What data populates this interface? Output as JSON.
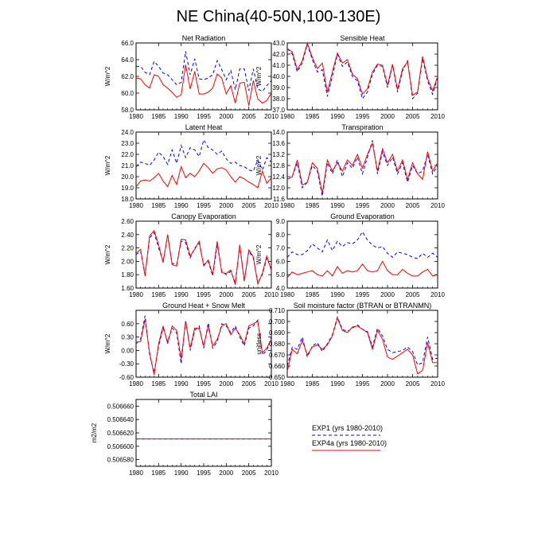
{
  "title": "NE China(40-50N,100-130E)",
  "colors": {
    "exp1": "#0000ff",
    "exp4a": "#ff0000"
  },
  "legend": {
    "exp1": "EXP1 (yrs 1980-2010)",
    "exp4a": "EXP4a (yrs 1980-2010)"
  },
  "chart_data": [
    {
      "type": "line",
      "title": "Net Radiation",
      "ylabel": "W/m^2",
      "xlim": [
        1980,
        2010
      ],
      "ylim": [
        58.0,
        66.0
      ],
      "xticks": [
        1980,
        1985,
        1990,
        1995,
        2000,
        2005,
        2010
      ],
      "yticks": [
        "58.0",
        "60.0",
        "62.0",
        "64.0",
        "66.0"
      ],
      "x": [
        1980,
        1981,
        1982,
        1983,
        1984,
        1985,
        1986,
        1987,
        1988,
        1989,
        1990,
        1991,
        1992,
        1993,
        1994,
        1995,
        1996,
        1997,
        1998,
        1999,
        2000,
        2001,
        2002,
        2003,
        2004,
        2005,
        2006,
        2007,
        2008,
        2009,
        2010
      ],
      "series": [
        {
          "name": "EXP1 (yrs 1980-2010)",
          "style": "dashed",
          "values": [
            63.2,
            63.2,
            62.5,
            62.2,
            63.8,
            63.2,
            62.4,
            62.2,
            61.6,
            61.0,
            61.3,
            65.0,
            62.2,
            64.1,
            61.7,
            61.6,
            61.8,
            62.2,
            63.9,
            62.8,
            61.6,
            62.7,
            60.4,
            62.9,
            62.9,
            60.3,
            62.9,
            60.5,
            60.2,
            60.9,
            61.5
          ]
        },
        {
          "name": "EXP4a (yrs 1980-2010)",
          "style": "solid",
          "values": [
            61.8,
            61.7,
            61.0,
            60.6,
            62.2,
            62.0,
            61.0,
            60.6,
            60.1,
            59.5,
            59.8,
            63.4,
            60.5,
            62.6,
            59.9,
            59.9,
            60.1,
            60.6,
            62.3,
            61.8,
            59.9,
            60.9,
            58.8,
            61.2,
            61.3,
            58.5,
            61.5,
            59.3,
            58.8,
            59.1,
            60.0
          ]
        }
      ]
    },
    {
      "type": "line",
      "title": "Sensible Heat",
      "ylabel": "W/m^2",
      "xlim": [
        1980,
        2010
      ],
      "ylim": [
        37.0,
        43.0
      ],
      "xticks": [
        1980,
        1985,
        1990,
        1995,
        2000,
        2005,
        2010
      ],
      "yticks": [
        "37.0",
        "38.0",
        "39.0",
        "40.0",
        "41.0",
        "42.0",
        "43.0"
      ],
      "x": [
        1980,
        1981,
        1982,
        1983,
        1984,
        1985,
        1986,
        1987,
        1988,
        1989,
        1990,
        1991,
        1992,
        1993,
        1994,
        1995,
        1996,
        1997,
        1998,
        1999,
        2000,
        2001,
        2002,
        2003,
        2004,
        2005,
        2006,
        2007,
        2008,
        2009,
        2010
      ],
      "series": [
        {
          "name": "EXP1 (yrs 1980-2010)",
          "style": "dashed",
          "values": [
            42.5,
            42.0,
            40.4,
            41.2,
            42.9,
            41.5,
            40.4,
            40.6,
            38.2,
            40.0,
            42.0,
            40.9,
            41.3,
            40.0,
            39.6,
            38.0,
            38.6,
            40.2,
            41.0,
            40.9,
            39.0,
            41.0,
            38.6,
            40.5,
            41.4,
            38.0,
            38.5,
            41.6,
            39.6,
            38.4,
            39.9
          ]
        },
        {
          "name": "EXP4a (yrs 1980-2010)",
          "style": "solid",
          "values": [
            42.5,
            42.2,
            40.6,
            41.4,
            43.0,
            41.7,
            40.7,
            41.2,
            38.6,
            40.4,
            42.1,
            41.2,
            41.5,
            40.2,
            39.8,
            38.4,
            38.9,
            40.4,
            41.1,
            41.0,
            39.2,
            41.1,
            38.8,
            40.7,
            41.3,
            38.3,
            38.6,
            41.8,
            39.8,
            38.7,
            40.0
          ]
        }
      ]
    },
    {
      "type": "line",
      "title": "Latent Heat",
      "ylabel": "W/m^2",
      "xlim": [
        1980,
        2010
      ],
      "ylim": [
        18.0,
        24.0
      ],
      "xticks": [
        1980,
        1985,
        1990,
        1995,
        2000,
        2005,
        2010
      ],
      "yticks": [
        "18.0",
        "19.0",
        "20.0",
        "21.0",
        "22.0",
        "23.0",
        "24.0"
      ],
      "x": [
        1980,
        1981,
        1982,
        1983,
        1984,
        1985,
        1986,
        1987,
        1988,
        1989,
        1990,
        1991,
        1992,
        1993,
        1994,
        1995,
        1996,
        1997,
        1998,
        1999,
        2000,
        2001,
        2002,
        2003,
        2004,
        2005,
        2006,
        2007,
        2008,
        2009,
        2010
      ],
      "series": [
        {
          "name": "EXP1 (yrs 1980-2010)",
          "style": "dashed",
          "values": [
            20.9,
            21.3,
            21.2,
            21.0,
            21.5,
            22.2,
            21.8,
            21.1,
            22.4,
            21.2,
            22.8,
            21.7,
            22.6,
            22.4,
            21.8,
            23.3,
            22.6,
            22.4,
            22.0,
            22.3,
            21.6,
            21.2,
            21.3,
            21.0,
            20.9,
            20.6,
            20.5,
            21.5,
            20.6,
            21.7,
            21.3
          ]
        },
        {
          "name": "EXP4a (yrs 1980-2010)",
          "style": "solid",
          "values": [
            19.1,
            19.6,
            19.7,
            19.6,
            19.9,
            20.3,
            19.6,
            19.1,
            20.1,
            19.3,
            20.9,
            19.9,
            20.3,
            20.0,
            20.5,
            21.2,
            20.8,
            20.3,
            20.7,
            20.8,
            20.6,
            20.0,
            19.5,
            20.0,
            19.8,
            19.5,
            19.3,
            19.0,
            20.5,
            19.4,
            19.9
          ]
        }
      ]
    },
    {
      "type": "line",
      "title": "Transpiration",
      "ylabel": "W/m^2",
      "xlim": [
        1980,
        2010
      ],
      "ylim": [
        11.6,
        14.0
      ],
      "xticks": [
        1980,
        1985,
        1990,
        1995,
        2000,
        2005,
        2010
      ],
      "yticks": [
        "11.6",
        "12.0",
        "12.4",
        "12.8",
        "13.2",
        "13.6",
        "14.0"
      ],
      "x": [
        1980,
        1981,
        1982,
        1983,
        1984,
        1985,
        1986,
        1987,
        1988,
        1989,
        1990,
        1991,
        1992,
        1993,
        1994,
        1995,
        1996,
        1997,
        1998,
        1999,
        2000,
        2001,
        2002,
        2003,
        2004,
        2005,
        2006,
        2007,
        2008,
        2009,
        2010
      ],
      "series": [
        {
          "name": "EXP1 (yrs 1980-2010)",
          "style": "dashed",
          "values": [
            12.3,
            12.4,
            12.9,
            12.0,
            12.2,
            12.8,
            12.6,
            11.7,
            12.9,
            12.5,
            13.0,
            12.4,
            12.9,
            12.7,
            13.1,
            12.5,
            13.1,
            13.7,
            12.5,
            13.3,
            12.8,
            13.1,
            12.5,
            12.9,
            12.2,
            12.8,
            12.5,
            12.6,
            13.2,
            12.5,
            12.8
          ]
        },
        {
          "name": "EXP4a (yrs 1980-2010)",
          "style": "solid",
          "values": [
            12.3,
            12.4,
            13.0,
            12.1,
            12.2,
            12.9,
            12.7,
            11.8,
            13.0,
            12.6,
            12.9,
            12.6,
            13.0,
            12.8,
            13.2,
            12.7,
            13.2,
            13.6,
            12.6,
            13.4,
            12.9,
            13.2,
            12.6,
            13.0,
            12.3,
            12.9,
            12.5,
            12.3,
            13.3,
            12.6,
            12.9
          ]
        }
      ]
    },
    {
      "type": "line",
      "title": "Canopy Evaporation",
      "ylabel": "W/m^2",
      "xlim": [
        1980,
        2010
      ],
      "ylim": [
        1.6,
        2.6
      ],
      "xticks": [
        1980,
        1985,
        1990,
        1995,
        2000,
        2005,
        2010
      ],
      "yticks": [
        "1.60",
        "1.80",
        "2.00",
        "2.20",
        "2.40",
        "2.60"
      ],
      "x": [
        1980,
        1981,
        1982,
        1983,
        1984,
        1985,
        1986,
        1987,
        1988,
        1989,
        1990,
        1991,
        1992,
        1993,
        1994,
        1995,
        1996,
        1997,
        1998,
        1999,
        2000,
        2001,
        2002,
        2003,
        2004,
        2005,
        2006,
        2007,
        2008,
        2009,
        2010
      ],
      "series": [
        {
          "name": "EXP1 (yrs 1980-2010)",
          "style": "dashed",
          "values": [
            2.1,
            2.15,
            1.8,
            2.35,
            2.43,
            2.2,
            2.0,
            2.38,
            1.97,
            1.95,
            2.3,
            2.28,
            2.05,
            2.2,
            2.27,
            1.95,
            2.0,
            1.78,
            2.25,
            1.85,
            1.8,
            1.85,
            1.68,
            2.23,
            1.72,
            2.15,
            2.05,
            1.68,
            1.8,
            2.05,
            1.88
          ]
        },
        {
          "name": "EXP4a (yrs 1980-2010)",
          "style": "solid",
          "values": [
            2.12,
            2.18,
            1.78,
            2.38,
            2.46,
            2.25,
            1.98,
            2.4,
            1.95,
            1.93,
            2.33,
            2.32,
            2.08,
            2.18,
            2.3,
            1.93,
            2.02,
            1.8,
            2.3,
            1.83,
            1.82,
            1.87,
            1.65,
            2.25,
            1.7,
            2.17,
            2.07,
            1.66,
            1.82,
            2.08,
            1.86
          ]
        }
      ]
    },
    {
      "type": "line",
      "title": "Ground Evaporation",
      "ylabel": "W/m^2",
      "xlim": [
        1980,
        2010
      ],
      "ylim": [
        4.0,
        9.0
      ],
      "xticks": [
        1980,
        1985,
        1990,
        1995,
        2000,
        2005,
        2010
      ],
      "yticks": [
        "4.0",
        "5.0",
        "6.0",
        "7.0",
        "8.0",
        "9.0"
      ],
      "x": [
        1980,
        1981,
        1982,
        1983,
        1984,
        1985,
        1986,
        1987,
        1988,
        1989,
        1990,
        1991,
        1992,
        1993,
        1994,
        1995,
        1996,
        1997,
        1998,
        1999,
        2000,
        2001,
        2002,
        2003,
        2004,
        2005,
        2006,
        2007,
        2008,
        2009,
        2010
      ],
      "series": [
        {
          "name": "EXP1 (yrs 1980-2010)",
          "style": "dashed",
          "values": [
            6.3,
            6.7,
            6.5,
            6.5,
            6.8,
            7.3,
            7.0,
            6.7,
            7.6,
            6.8,
            7.5,
            7.1,
            7.4,
            7.3,
            7.6,
            8.2,
            7.6,
            7.2,
            7.0,
            7.1,
            6.6,
            6.3,
            6.7,
            6.6,
            6.5,
            6.3,
            6.2,
            6.6,
            6.3,
            6.6,
            6.3
          ]
        },
        {
          "name": "EXP4a (yrs 1980-2010)",
          "style": "solid",
          "values": [
            4.8,
            5.2,
            5.0,
            5.1,
            5.2,
            5.3,
            5.0,
            4.9,
            5.3,
            4.9,
            5.6,
            5.1,
            5.3,
            5.2,
            5.3,
            5.8,
            5.3,
            5.2,
            5.3,
            6.0,
            5.3,
            5.0,
            5.0,
            5.4,
            5.1,
            4.9,
            4.9,
            5.2,
            5.4,
            4.9,
            5.0
          ]
        }
      ]
    },
    {
      "type": "line",
      "title": "Ground Heat + Snow Melt",
      "ylabel": "W/m^2",
      "xlim": [
        1980,
        2010
      ],
      "ylim": [
        -0.6,
        0.9
      ],
      "xticks": [
        1980,
        1985,
        1990,
        1995,
        2000,
        2005,
        2010
      ],
      "yticks": [
        "-0.60",
        "-0.30",
        "0.00",
        "0.30",
        "0.60"
      ],
      "x": [
        1980,
        1981,
        1982,
        1983,
        1984,
        1985,
        1986,
        1987,
        1988,
        1989,
        1990,
        1991,
        1992,
        1993,
        1994,
        1995,
        1996,
        1997,
        1998,
        1999,
        2000,
        2001,
        2002,
        2003,
        2004,
        2005,
        2006,
        2007,
        2008,
        2009,
        2010
      ],
      "series": [
        {
          "name": "EXP1 (yrs 1980-2010)",
          "style": "dashed",
          "values": [
            0.15,
            0.25,
            0.78,
            -0.1,
            -0.5,
            0.1,
            0.5,
            0.2,
            0.5,
            0.4,
            -0.3,
            0.68,
            0.0,
            0.45,
            0.55,
            0.05,
            0.62,
            0.05,
            0.2,
            0.6,
            0.55,
            0.4,
            0.55,
            0.3,
            0.1,
            0.5,
            0.55,
            0.68,
            -0.1,
            0.0,
            0.3
          ]
        },
        {
          "name": "EXP4a (yrs 1980-2010)",
          "style": "solid",
          "values": [
            0.18,
            0.2,
            0.7,
            -0.05,
            -0.55,
            0.15,
            0.55,
            0.15,
            0.55,
            0.45,
            -0.2,
            0.65,
            0.05,
            0.5,
            0.5,
            0.1,
            0.55,
            0.1,
            0.25,
            0.55,
            0.6,
            0.35,
            0.5,
            0.35,
            0.15,
            0.55,
            0.6,
            0.65,
            -0.05,
            0.05,
            0.25
          ]
        }
      ]
    },
    {
      "type": "line",
      "title": "Soil moisture factor (BTRAN or BTRANMN)",
      "ylabel": "unitless",
      "xlim": [
        1980,
        2010
      ],
      "ylim": [
        0.65,
        0.71
      ],
      "xticks": [
        1980,
        1985,
        1990,
        1995,
        2000,
        2005,
        2010
      ],
      "yticks": [
        "0.650",
        "0.660",
        "0.670",
        "0.680",
        "0.690",
        "0.700",
        "0.710"
      ],
      "x": [
        1980,
        1981,
        1982,
        1983,
        1984,
        1985,
        1986,
        1987,
        1988,
        1989,
        1990,
        1991,
        1992,
        1993,
        1994,
        1995,
        1996,
        1997,
        1998,
        1999,
        2000,
        2001,
        2002,
        2003,
        2004,
        2005,
        2006,
        2007,
        2008,
        2009,
        2010
      ],
      "series": [
        {
          "name": "EXP1 (yrs 1980-2010)",
          "style": "dashed",
          "values": [
            0.66,
            0.677,
            0.675,
            0.686,
            0.668,
            0.678,
            0.681,
            0.673,
            0.68,
            0.688,
            0.704,
            0.693,
            0.691,
            0.694,
            0.697,
            0.693,
            0.691,
            0.677,
            0.694,
            0.687,
            0.675,
            0.672,
            0.673,
            0.674,
            0.677,
            0.673,
            0.661,
            0.663,
            0.686,
            0.666,
            0.667
          ]
        },
        {
          "name": "EXP4a (yrs 1980-2010)",
          "style": "solid",
          "values": [
            0.655,
            0.675,
            0.671,
            0.683,
            0.67,
            0.677,
            0.679,
            0.675,
            0.679,
            0.687,
            0.703,
            0.692,
            0.69,
            0.695,
            0.696,
            0.693,
            0.69,
            0.675,
            0.692,
            0.684,
            0.668,
            0.666,
            0.669,
            0.672,
            0.675,
            0.67,
            0.653,
            0.656,
            0.681,
            0.663,
            0.663
          ]
        }
      ]
    },
    {
      "type": "line",
      "title": "Total LAI",
      "ylabel": "m2/m2",
      "xlim": [
        1980,
        2010
      ],
      "ylim": [
        0.50657,
        0.50667
      ],
      "xticks": [
        1980,
        1985,
        1990,
        1995,
        2000,
        2005,
        2010
      ],
      "yticks": [
        "0.506580",
        "0.506600",
        "0.506620",
        "0.506640",
        "0.506660"
      ],
      "x": [
        1980,
        2010
      ],
      "series": [
        {
          "name": "EXP1 (yrs 1980-2010)",
          "style": "dashed",
          "values": [
            0.506611,
            0.506611
          ]
        },
        {
          "name": "EXP4a (yrs 1980-2010)",
          "style": "solid",
          "values": [
            0.506611,
            0.506611
          ]
        }
      ]
    }
  ]
}
